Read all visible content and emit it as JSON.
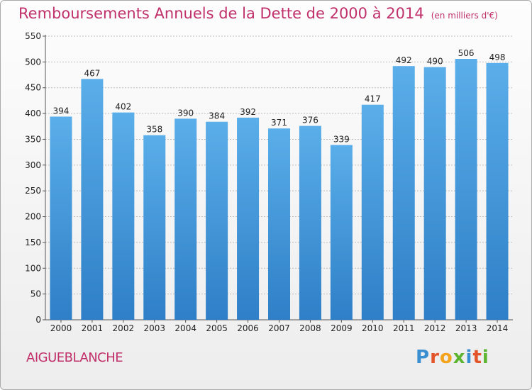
{
  "header": {
    "title": "Remboursements Annuels de la Dette de 2000 à 2014",
    "subtitle": "(en milliers d'€)"
  },
  "footer": {
    "commune": "AIGUEBLANCHE",
    "logo_letters": [
      {
        "char": "P",
        "color": "#3a8fd1"
      },
      {
        "char": "r",
        "color": "#e2542a"
      },
      {
        "char": "o",
        "color": "#f3a31c"
      },
      {
        "char": "x",
        "color": "#5cb531"
      },
      {
        "char": "i",
        "color": "#3a8fd1"
      },
      {
        "char": "t",
        "color": "#e2542a"
      },
      {
        "char": "i",
        "color": "#5cb531"
      }
    ]
  },
  "colors": {
    "bar_light": "#5aaee9",
    "bar_dark": "#2e7fc7",
    "accent": "#c0306a"
  },
  "chart_data": {
    "type": "bar",
    "title": "Remboursements Annuels de la Dette de 2000 à 2014",
    "subtitle": "(en milliers d'€)",
    "xlabel": "",
    "ylabel": "",
    "categories": [
      "2000",
      "2001",
      "2002",
      "2003",
      "2004",
      "2005",
      "2006",
      "2007",
      "2008",
      "2009",
      "2010",
      "2011",
      "2012",
      "2013",
      "2014"
    ],
    "values": [
      394,
      467,
      402,
      358,
      390,
      384,
      392,
      371,
      376,
      339,
      417,
      492,
      490,
      506,
      498
    ],
    "ylim": [
      0,
      550
    ],
    "yticks": [
      0,
      50,
      100,
      150,
      200,
      250,
      300,
      350,
      400,
      450,
      500,
      550
    ],
    "grid": true,
    "legend": "none"
  }
}
